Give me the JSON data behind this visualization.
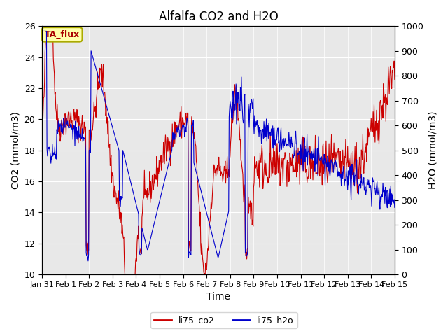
{
  "title": "Alfalfa CO2 and H2O",
  "xlabel": "Time",
  "ylabel_left": "CO2 (mmol/m3)",
  "ylabel_right": "H2O (mmol/m3)",
  "ylim_left": [
    10,
    26
  ],
  "ylim_right": [
    0,
    1000
  ],
  "yticks_left": [
    10,
    12,
    14,
    16,
    18,
    20,
    22,
    24,
    26
  ],
  "yticks_right": [
    0,
    100,
    200,
    300,
    400,
    500,
    600,
    700,
    800,
    900,
    1000
  ],
  "background_color": "#e8e8e8",
  "line_co2_color": "#cc0000",
  "line_h2o_color": "#0000cc",
  "legend_label_co2": "li75_co2",
  "legend_label_h2o": "li75_h2o",
  "annotation_text": "TA_flux",
  "annotation_bg": "#ffffaa",
  "annotation_border": "#aaaa00"
}
